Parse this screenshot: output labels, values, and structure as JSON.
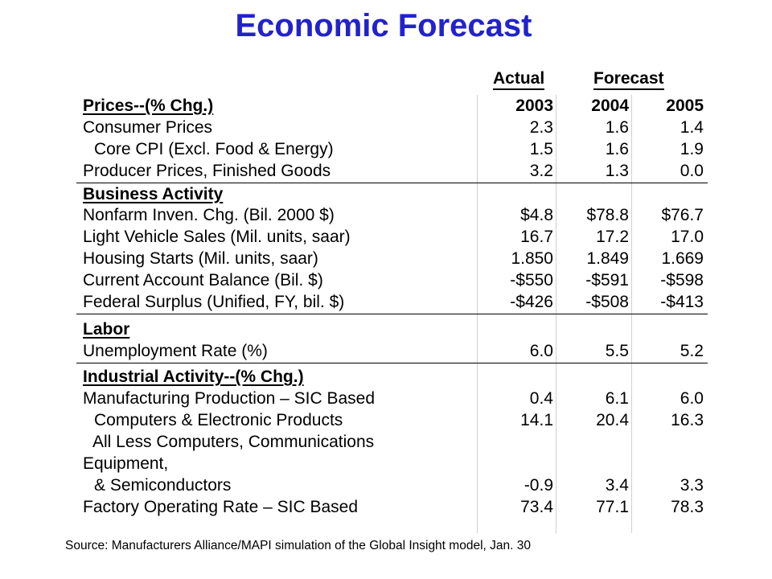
{
  "title": "Economic Forecast",
  "header": {
    "actual": "Actual",
    "forecast": "Forecast"
  },
  "chart_data": {
    "type": "table",
    "title": "Economic Forecast",
    "group_headers": [
      "Actual",
      "Forecast"
    ],
    "columns": [
      "2003",
      "2004",
      "2005"
    ],
    "sections": [
      {
        "name": "Prices--(% Chg.)",
        "rows": [
          {
            "label": "Consumer Prices",
            "values": [
              "2.3",
              "1.6",
              "1.4"
            ]
          },
          {
            "label": "Core CPI (Excl. Food & Energy)",
            "values": [
              "1.5",
              "1.6",
              "1.9"
            ]
          },
          {
            "label": "Producer Prices, Finished Goods",
            "values": [
              "3.2",
              "1.3",
              "0.0"
            ]
          }
        ]
      },
      {
        "name": "Business Activity",
        "rows": [
          {
            "label": "Nonfarm Inven. Chg. (Bil. 2000 $)",
            "values": [
              "$4.8",
              "$78.8",
              "$76.7"
            ]
          },
          {
            "label": "Light Vehicle Sales (Mil. units, saar)",
            "values": [
              "16.7",
              "17.2",
              "17.0"
            ]
          },
          {
            "label": "Housing Starts (Mil. units, saar)",
            "values": [
              "1.850",
              "1.849",
              "1.669"
            ]
          },
          {
            "label": "Current Account Balance (Bil. $)",
            "values": [
              "-$550",
              "-$591",
              "-$598"
            ]
          },
          {
            "label": "Federal Surplus (Unified, FY, bil. $)",
            "values": [
              "-$426",
              "-$508",
              "-$413"
            ]
          }
        ]
      },
      {
        "name": "Labor",
        "rows": [
          {
            "label": "Unemployment Rate (%)",
            "values": [
              "6.0",
              "5.5",
              "5.2"
            ]
          }
        ]
      },
      {
        "name": "Industrial Activity--(% Chg.)",
        "rows": [
          {
            "label": "Manufacturing Production – SIC Based",
            "values": [
              "0.4",
              "6.1",
              "6.0"
            ]
          },
          {
            "label": "Computers & Electronic Products",
            "values": [
              "14.1",
              "20.4",
              "16.3"
            ]
          },
          {
            "label": "All Less Computers, Communications",
            "values": [
              "",
              "",
              ""
            ]
          },
          {
            "label": "Equipment,",
            "values": [
              "",
              "",
              ""
            ]
          },
          {
            "label": "& Semiconductors",
            "values": [
              "-0.9",
              "3.4",
              "3.3"
            ]
          },
          {
            "label": "Factory Operating Rate – SIC Based",
            "values": [
              "73.4",
              "77.1",
              "78.3"
            ]
          }
        ]
      }
    ]
  },
  "source": "Source: Manufacturers Alliance/MAPI simulation of the Global Insight model, Jan. 30"
}
